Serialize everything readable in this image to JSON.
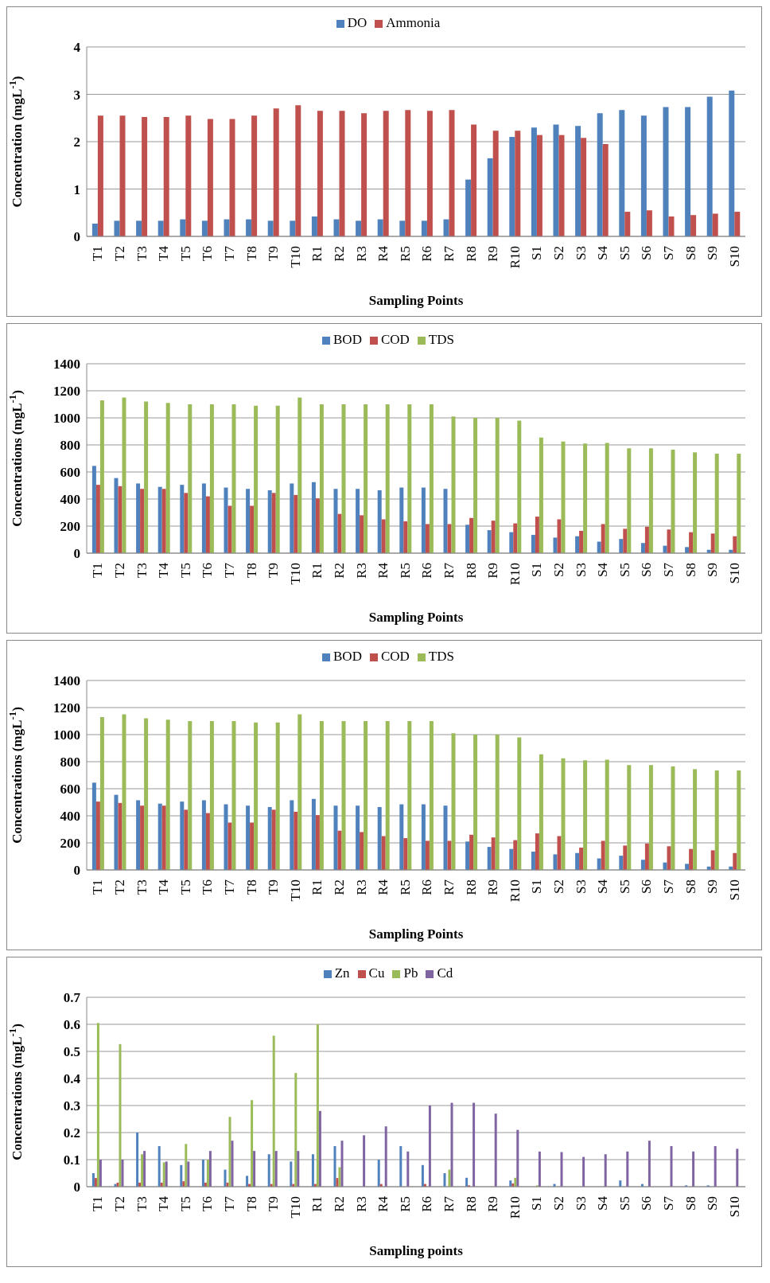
{
  "chart_data": [
    {
      "type": "bar",
      "xlabel": "Sampling Points",
      "ylabel": "Concentration (mgL$^{-1}$)",
      "categories": [
        "T1",
        "T2",
        "T3",
        "T4",
        "T5",
        "T6",
        "T7",
        "T8",
        "T9",
        "T10",
        "R1",
        "R2",
        "R3",
        "R4",
        "R5",
        "R6",
        "R7",
        "R8",
        "R9",
        "R10",
        "S1",
        "S2",
        "S3",
        "S4",
        "S5",
        "S6",
        "S7",
        "S8",
        "S9",
        "S10"
      ],
      "series": [
        {
          "name": "DO",
          "color": "#4f81bd",
          "values": [
            0.27,
            0.33,
            0.33,
            0.33,
            0.36,
            0.33,
            0.36,
            0.36,
            0.33,
            0.33,
            0.42,
            0.36,
            0.33,
            0.36,
            0.33,
            0.33,
            0.36,
            1.2,
            1.65,
            2.1,
            2.3,
            2.36,
            2.33,
            2.6,
            2.67,
            2.55,
            2.73,
            2.73,
            2.95,
            3.08
          ]
        },
        {
          "name": "Ammonia",
          "color": "#c0504d",
          "values": [
            2.55,
            2.55,
            2.52,
            2.52,
            2.55,
            2.48,
            2.48,
            2.55,
            2.7,
            2.77,
            2.65,
            2.65,
            2.6,
            2.65,
            2.67,
            2.65,
            2.67,
            2.36,
            2.23,
            2.23,
            2.14,
            2.14,
            2.08,
            1.95,
            0.52,
            0.55,
            0.42,
            0.45,
            0.48,
            0.52
          ]
        }
      ],
      "ylim": [
        0,
        4
      ],
      "yticks": [
        0,
        1,
        2,
        3,
        4
      ],
      "grid": "y",
      "legend": "top"
    },
    {
      "type": "bar",
      "xlabel": "Sampling Points",
      "ylabel": "Concentrations (mgL$^{-1}$)",
      "categories": [
        "T1",
        "T2",
        "T3",
        "T4",
        "T5",
        "T6",
        "T7",
        "T8",
        "T9",
        "T10",
        "R1",
        "R2",
        "R3",
        "R4",
        "R5",
        "R6",
        "R7",
        "R8",
        "R9",
        "R10",
        "S1",
        "S2",
        "S3",
        "S4",
        "S5",
        "S6",
        "S7",
        "S8",
        "S9",
        "S10"
      ],
      "series": [
        {
          "name": "BOD",
          "color": "#4f81bd",
          "values": [
            645,
            555,
            515,
            490,
            505,
            515,
            485,
            475,
            465,
            515,
            525,
            475,
            475,
            465,
            485,
            485,
            475,
            210,
            170,
            155,
            135,
            115,
            125,
            85,
            105,
            75,
            55,
            45,
            25,
            25
          ]
        },
        {
          "name": "COD",
          "color": "#c0504d",
          "values": [
            505,
            495,
            475,
            475,
            445,
            420,
            350,
            350,
            445,
            430,
            405,
            290,
            280,
            250,
            235,
            215,
            215,
            260,
            240,
            220,
            270,
            250,
            165,
            215,
            180,
            195,
            175,
            155,
            145,
            125
          ]
        },
        {
          "name": "TDS",
          "color": "#9bbb59",
          "values": [
            1130,
            1150,
            1120,
            1110,
            1100,
            1100,
            1100,
            1090,
            1090,
            1150,
            1100,
            1100,
            1100,
            1100,
            1100,
            1100,
            1010,
            1000,
            1000,
            980,
            855,
            825,
            810,
            815,
            775,
            775,
            765,
            745,
            735,
            735
          ]
        }
      ],
      "ylim": [
        0,
        1400
      ],
      "yticks": [
        0,
        200,
        400,
        600,
        800,
        1000,
        1200,
        1400
      ],
      "grid": "y",
      "legend": "top"
    },
    {
      "type": "bar",
      "xlabel": "Sampling Points",
      "ylabel": "Concentrations (mgL$^{-1}$)",
      "categories": [
        "T1",
        "T2",
        "T3",
        "T4",
        "T5",
        "T6",
        "T7",
        "T8",
        "T9",
        "T10",
        "R1",
        "R2",
        "R3",
        "R4",
        "R5",
        "R6",
        "R7",
        "R8",
        "R9",
        "R10",
        "S1",
        "S2",
        "S3",
        "S4",
        "S5",
        "S6",
        "S7",
        "S8",
        "S9",
        "S10"
      ],
      "series": [
        {
          "name": "BOD",
          "color": "#4f81bd",
          "values": [
            645,
            555,
            515,
            490,
            505,
            515,
            485,
            475,
            465,
            515,
            525,
            475,
            475,
            465,
            485,
            485,
            475,
            210,
            170,
            155,
            135,
            115,
            125,
            85,
            105,
            75,
            55,
            45,
            25,
            25
          ]
        },
        {
          "name": "COD",
          "color": "#c0504d",
          "values": [
            505,
            495,
            475,
            475,
            445,
            420,
            350,
            350,
            445,
            430,
            405,
            290,
            280,
            250,
            235,
            215,
            215,
            260,
            240,
            220,
            270,
            250,
            165,
            215,
            180,
            195,
            175,
            155,
            145,
            125
          ]
        },
        {
          "name": "TDS",
          "color": "#9bbb59",
          "values": [
            1130,
            1150,
            1120,
            1110,
            1100,
            1100,
            1100,
            1090,
            1090,
            1150,
            1100,
            1100,
            1100,
            1100,
            1100,
            1100,
            1010,
            1000,
            1000,
            980,
            855,
            825,
            810,
            815,
            775,
            775,
            765,
            745,
            735,
            735
          ]
        }
      ],
      "ylim": [
        0,
        1400
      ],
      "yticks": [
        0,
        200,
        400,
        600,
        800,
        1000,
        1200,
        1400
      ],
      "grid": "y",
      "legend": "top"
    },
    {
      "type": "bar",
      "xlabel": "Sampling points",
      "ylabel": "Concentrations (mgL$^{-1}$)",
      "categories": [
        "T1",
        "T2",
        "T3",
        "T4",
        "T5",
        "T6",
        "T7",
        "T8",
        "T9",
        "T10",
        "R1",
        "R2",
        "R3",
        "R4",
        "R5",
        "R6",
        "R7",
        "R8",
        "R9",
        "R10",
        "S1",
        "S2",
        "S3",
        "S4",
        "S5",
        "S6",
        "S7",
        "S8",
        "S9",
        "S10"
      ],
      "series": [
        {
          "name": "Zn",
          "color": "#4f81bd",
          "values": [
            0.05,
            0.01,
            0.2,
            0.15,
            0.08,
            0.1,
            0.063,
            0.04,
            0.12,
            0.093,
            0.12,
            0.15,
            0,
            0.1,
            0.15,
            0.08,
            0.05,
            0.033,
            0,
            0.023,
            0,
            0.01,
            0,
            0,
            0.023,
            0.01,
            0,
            0.005,
            0.005,
            0
          ]
        },
        {
          "name": "Cu",
          "color": "#c0504d",
          "values": [
            0.032,
            0.015,
            0.015,
            0.015,
            0.02,
            0.015,
            0.015,
            0.01,
            0.01,
            0.01,
            0.01,
            0.032,
            0,
            0.01,
            0,
            0.01,
            0,
            0.005,
            0,
            0.012,
            0,
            0,
            0,
            0,
            0,
            0,
            0,
            0,
            0,
            0
          ]
        },
        {
          "name": "Pb",
          "color": "#9bbb59",
          "values": [
            0.605,
            0.527,
            0.12,
            0.09,
            0.158,
            0.1,
            0.258,
            0.32,
            0.558,
            0.42,
            0.6,
            0.072,
            0,
            0,
            0,
            0,
            0.063,
            0,
            0,
            0.033,
            0.005,
            0,
            0,
            0,
            0,
            0,
            0,
            0,
            0,
            0
          ]
        },
        {
          "name": "Cd",
          "color": "#8064a2",
          "values": [
            0.1,
            0.1,
            0.132,
            0.093,
            0.093,
            0.132,
            0.17,
            0.132,
            0.132,
            0.132,
            0.28,
            0.17,
            0.19,
            0.223,
            0.13,
            0.3,
            0.31,
            0.31,
            0.27,
            0.21,
            0.13,
            0.128,
            0.11,
            0.12,
            0.13,
            0.17,
            0.15,
            0.13,
            0.15,
            0.14
          ]
        }
      ],
      "ylim": [
        0,
        0.7
      ],
      "yticks": [
        0,
        0.1,
        0.2,
        0.3,
        0.4,
        0.5,
        0.6,
        0.7
      ],
      "grid": "y",
      "legend": "top"
    }
  ]
}
